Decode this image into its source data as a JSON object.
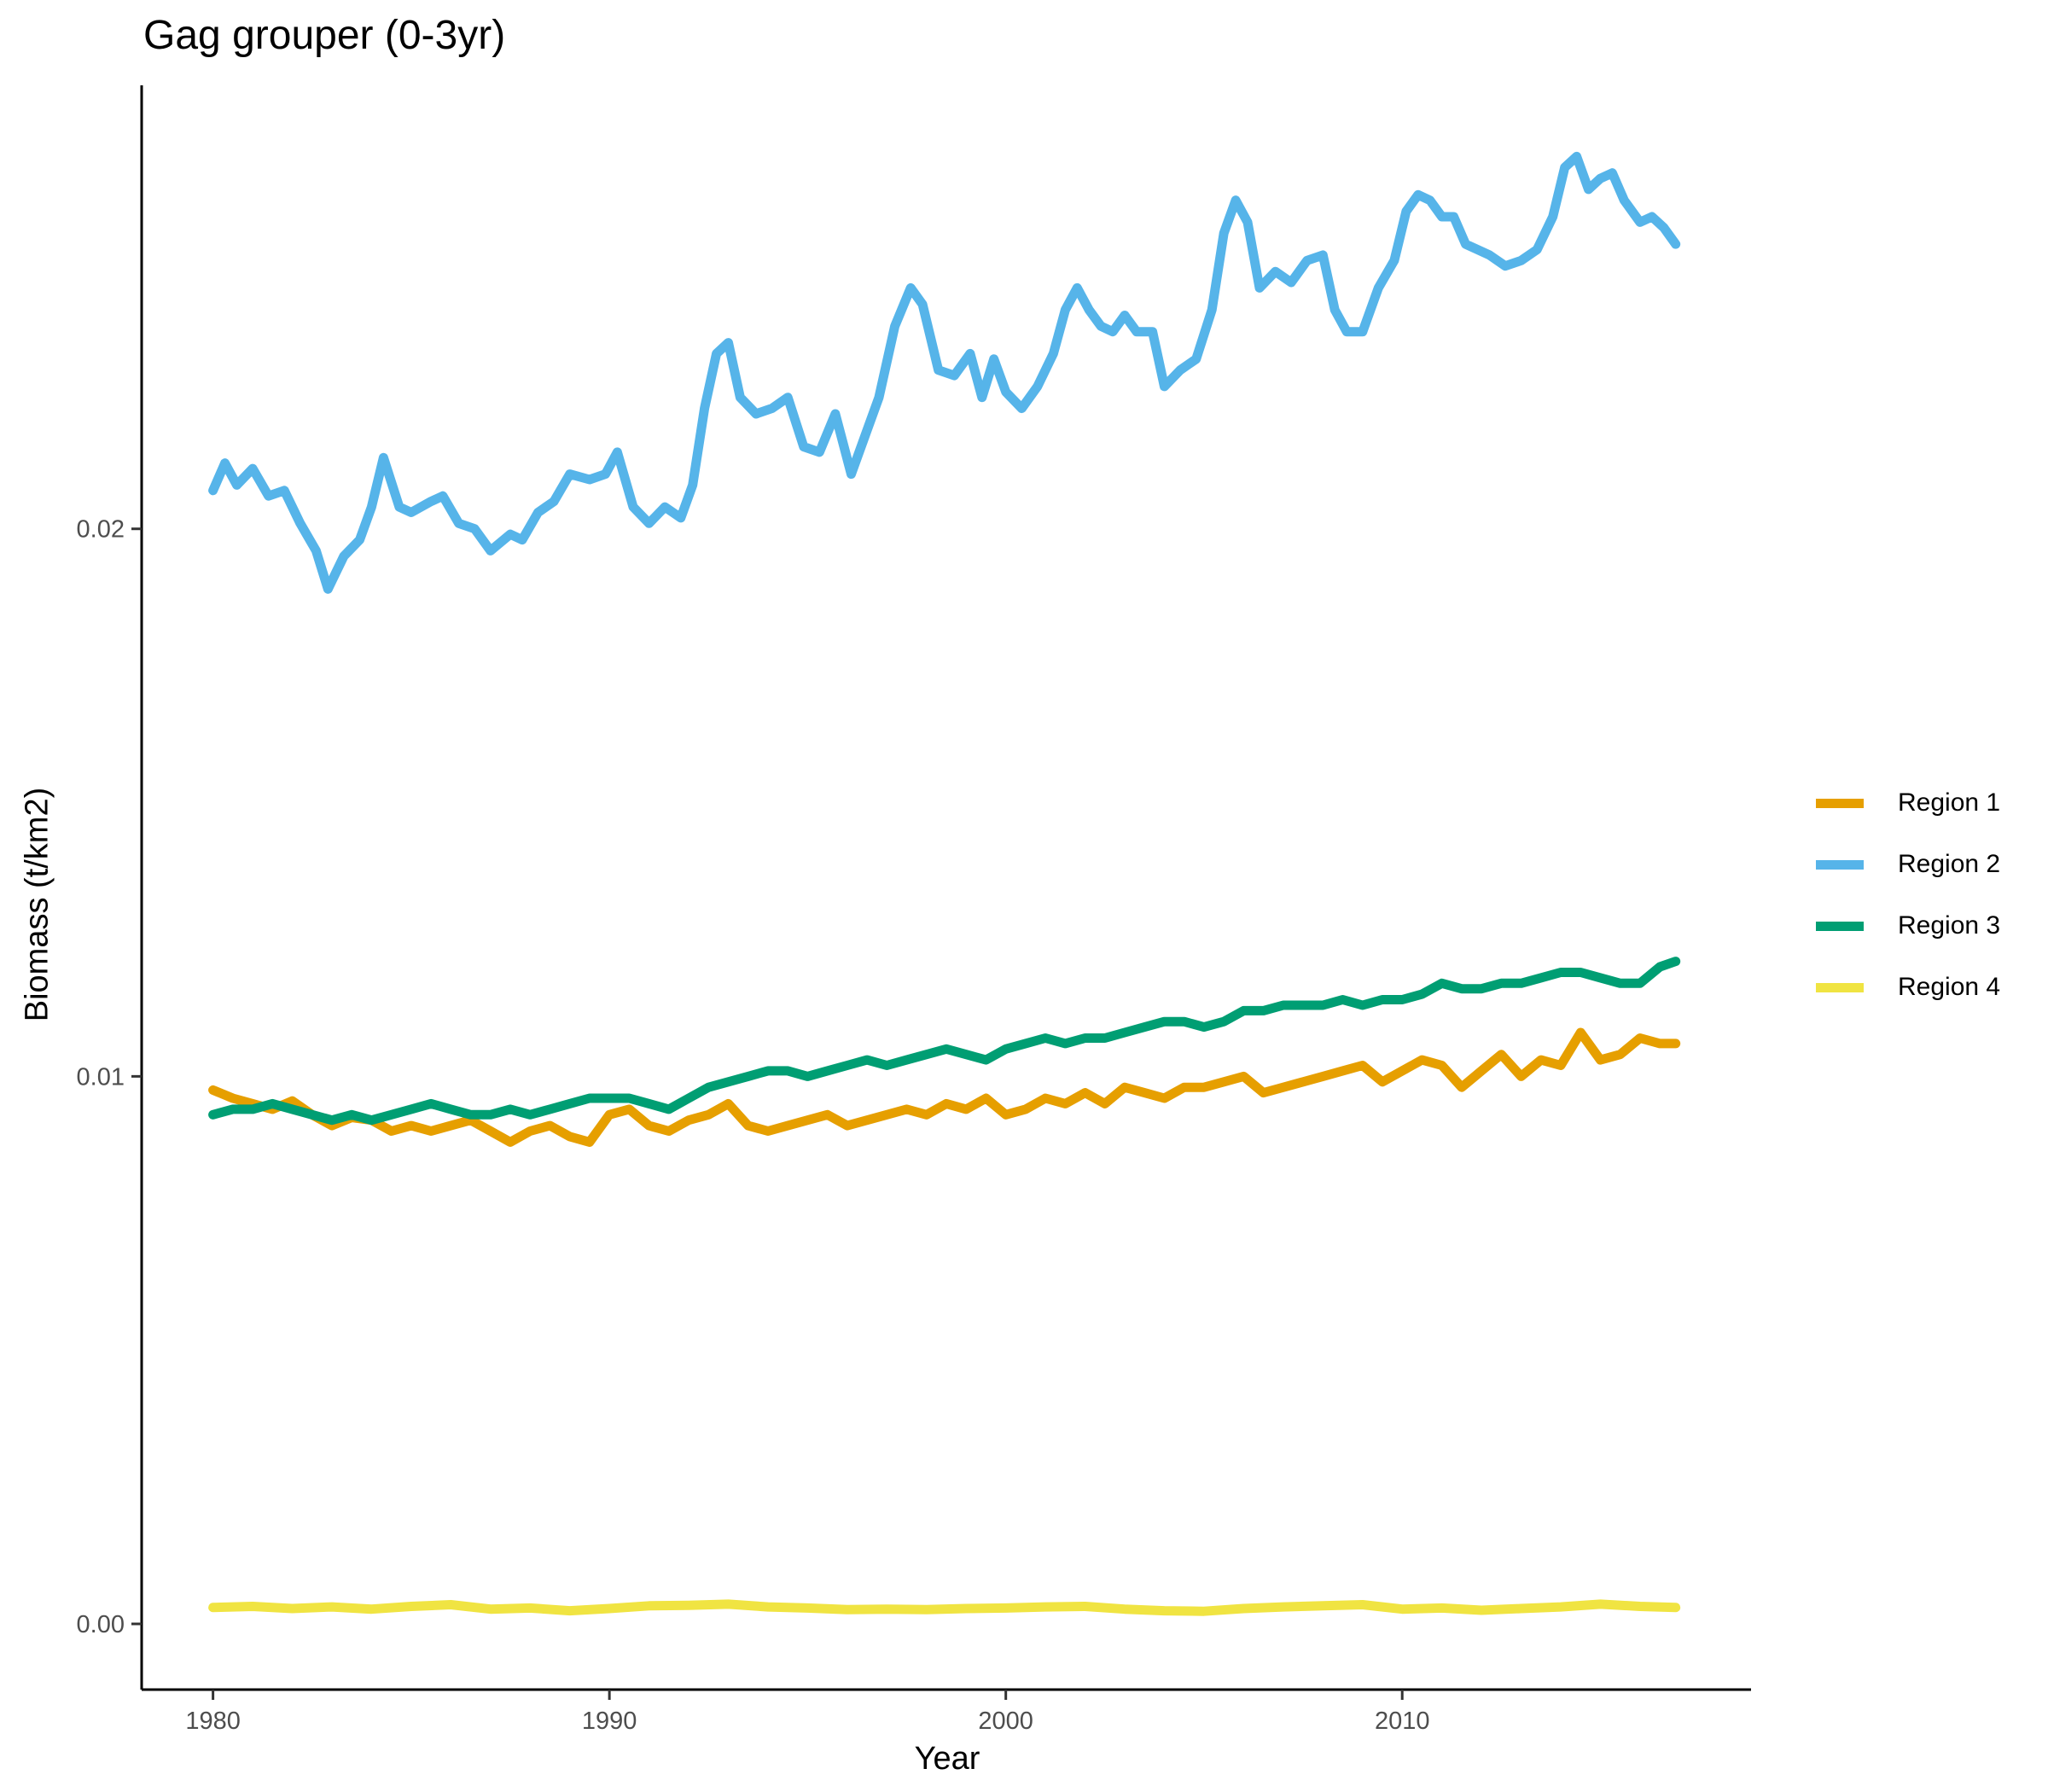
{
  "chart_data": {
    "type": "line",
    "title": "Gag grouper (0-3yr)",
    "xlabel": "Year",
    "ylabel": "Biomass (t/km2)",
    "xlim": [
      1978.2,
      2018.8
    ],
    "ylim": [
      -0.0012,
      0.0281
    ],
    "x_ticks": [
      1980,
      1990,
      2000,
      2010
    ],
    "x_tick_labels": [
      "1980",
      "1990",
      "2000",
      "2010"
    ],
    "y_ticks": [
      0,
      0.01,
      0.02
    ],
    "y_tick_labels": [
      "0.00",
      "0.01",
      "0.02"
    ],
    "legend_position": "right",
    "grid": false,
    "series": [
      {
        "name": "Region 1",
        "color": "#E69F00",
        "x": [
          1980.0,
          1980.5,
          1981.0,
          1981.5,
          1982.0,
          1982.5,
          1983.0,
          1983.5,
          1984.0,
          1984.5,
          1985.0,
          1985.5,
          1986.0,
          1986.5,
          1987.0,
          1987.5,
          1988.0,
          1988.5,
          1989.0,
          1989.5,
          1990.0,
          1990.5,
          1991.0,
          1991.5,
          1992.0,
          1992.5,
          1993.0,
          1993.5,
          1994.0,
          1994.5,
          1995.0,
          1995.5,
          1996.0,
          1996.5,
          1997.0,
          1997.5,
          1998.0,
          1998.5,
          1999.0,
          1999.5,
          2000.0,
          2000.5,
          2001.0,
          2001.5,
          2002.0,
          2002.5,
          2003.0,
          2003.5,
          2004.0,
          2004.5,
          2005.0,
          2005.5,
          2006.0,
          2006.5,
          2007.0,
          2007.5,
          2008.0,
          2008.5,
          2009.0,
          2009.5,
          2010.0,
          2010.5,
          2011.0,
          2011.5,
          2012.0,
          2012.5,
          2013.0,
          2013.5,
          2014.0,
          2014.5,
          2015.0,
          2015.5,
          2016.0,
          2016.5,
          2016.9
        ],
        "values": [
          0.00975,
          0.0096,
          0.0095,
          0.0094,
          0.00955,
          0.0093,
          0.0091,
          0.00925,
          0.0092,
          0.009,
          0.0091,
          0.009,
          0.0091,
          0.0092,
          0.009,
          0.0088,
          0.009,
          0.0091,
          0.0089,
          0.0088,
          0.0093,
          0.0094,
          0.0091,
          0.009,
          0.0092,
          0.0093,
          0.0095,
          0.0091,
          0.009,
          0.0091,
          0.0092,
          0.0093,
          0.0091,
          0.0092,
          0.0093,
          0.0094,
          0.0093,
          0.0095,
          0.0094,
          0.0096,
          0.0093,
          0.0094,
          0.0096,
          0.0095,
          0.0097,
          0.0095,
          0.0098,
          0.0097,
          0.0096,
          0.0098,
          0.0098,
          0.0099,
          0.01,
          0.0097,
          0.0098,
          0.0099,
          0.01,
          0.0101,
          0.0102,
          0.0099,
          0.0101,
          0.0103,
          0.0102,
          0.0098,
          0.0101,
          0.0104,
          0.01,
          0.0103,
          0.0102,
          0.0108,
          0.0103,
          0.0104,
          0.0107,
          0.0106,
          0.0106
        ]
      },
      {
        "name": "Region 2",
        "color": "#56B4E9",
        "x": [
          1980.0,
          1980.3,
          1980.6,
          1981.0,
          1981.4,
          1981.8,
          1982.2,
          1982.6,
          1982.9,
          1983.3,
          1983.7,
          1984.0,
          1984.3,
          1984.7,
          1985.0,
          1985.5,
          1985.8,
          1986.2,
          1986.6,
          1987.0,
          1987.5,
          1987.8,
          1988.2,
          1988.6,
          1989.0,
          1989.5,
          1989.9,
          1990.2,
          1990.6,
          1991.0,
          1991.4,
          1991.8,
          1992.1,
          1992.4,
          1992.7,
          1993.0,
          1993.3,
          1993.7,
          1994.1,
          1994.5,
          1994.9,
          1995.3,
          1995.7,
          1996.1,
          1996.4,
          1996.8,
          1997.2,
          1997.6,
          1997.9,
          1998.3,
          1998.7,
          1999.1,
          1999.4,
          1999.7,
          2000.0,
          2000.4,
          2000.8,
          2001.2,
          2001.5,
          2001.8,
          2002.1,
          2002.4,
          2002.7,
          2003.0,
          2003.3,
          2003.7,
          2004.0,
          2004.4,
          2004.8,
          2005.2,
          2005.5,
          2005.8,
          2006.1,
          2006.4,
          2006.8,
          2007.2,
          2007.6,
          2008.0,
          2008.3,
          2008.6,
          2009.0,
          2009.4,
          2009.8,
          2010.1,
          2010.4,
          2010.7,
          2011.0,
          2011.3,
          2011.6,
          2011.9,
          2012.2,
          2012.6,
          2013.0,
          2013.4,
          2013.8,
          2014.1,
          2014.4,
          2014.7,
          2015.0,
          2015.3,
          2015.6,
          2016.0,
          2016.3,
          2016.6,
          2016.9
        ],
        "values": [
          0.0207,
          0.0212,
          0.0208,
          0.0211,
          0.0206,
          0.0207,
          0.0201,
          0.0196,
          0.0189,
          0.0195,
          0.0198,
          0.0204,
          0.0213,
          0.0204,
          0.0203,
          0.0205,
          0.0206,
          0.0201,
          0.02,
          0.0196,
          0.0199,
          0.0198,
          0.0203,
          0.0205,
          0.021,
          0.0209,
          0.021,
          0.0214,
          0.0204,
          0.0201,
          0.0204,
          0.0202,
          0.0208,
          0.0222,
          0.0232,
          0.0234,
          0.0224,
          0.0221,
          0.0222,
          0.0224,
          0.0215,
          0.0214,
          0.0221,
          0.021,
          0.0216,
          0.0224,
          0.0237,
          0.0244,
          0.0241,
          0.0229,
          0.0228,
          0.0232,
          0.0224,
          0.0231,
          0.0225,
          0.0222,
          0.0226,
          0.0232,
          0.024,
          0.0244,
          0.024,
          0.0237,
          0.0236,
          0.0239,
          0.0236,
          0.0236,
          0.0226,
          0.0229,
          0.0231,
          0.024,
          0.0254,
          0.026,
          0.0256,
          0.0244,
          0.0247,
          0.0245,
          0.0249,
          0.025,
          0.024,
          0.0236,
          0.0236,
          0.0244,
          0.0249,
          0.0258,
          0.0261,
          0.026,
          0.0257,
          0.0257,
          0.0252,
          0.0251,
          0.025,
          0.0248,
          0.0249,
          0.0251,
          0.0257,
          0.0266,
          0.0268,
          0.0262,
          0.0264,
          0.0265,
          0.026,
          0.0256,
          0.0257,
          0.0255,
          0.0252
        ]
      },
      {
        "name": "Region 3",
        "color": "#009E73",
        "x": [
          1980.0,
          1980.5,
          1981.0,
          1981.5,
          1982.0,
          1982.5,
          1983.0,
          1983.5,
          1984.0,
          1984.5,
          1985.0,
          1985.5,
          1986.0,
          1986.5,
          1987.0,
          1987.5,
          1988.0,
          1988.5,
          1989.0,
          1989.5,
          1990.0,
          1990.5,
          1991.0,
          1991.5,
          1992.0,
          1992.5,
          1993.0,
          1993.5,
          1994.0,
          1994.5,
          1995.0,
          1995.5,
          1996.0,
          1996.5,
          1997.0,
          1997.5,
          1998.0,
          1998.5,
          1999.0,
          1999.5,
          2000.0,
          2000.5,
          2001.0,
          2001.5,
          2002.0,
          2002.5,
          2003.0,
          2003.5,
          2004.0,
          2004.5,
          2005.0,
          2005.5,
          2006.0,
          2006.5,
          2007.0,
          2007.5,
          2008.0,
          2008.5,
          2009.0,
          2009.5,
          2010.0,
          2010.5,
          2011.0,
          2011.5,
          2012.0,
          2012.5,
          2013.0,
          2013.5,
          2014.0,
          2014.5,
          2015.0,
          2015.5,
          2016.0,
          2016.5,
          2016.9
        ],
        "values": [
          0.0093,
          0.0094,
          0.0094,
          0.0095,
          0.0094,
          0.0093,
          0.0092,
          0.0093,
          0.0092,
          0.0093,
          0.0094,
          0.0095,
          0.0094,
          0.0093,
          0.0093,
          0.0094,
          0.0093,
          0.0094,
          0.0095,
          0.0096,
          0.0096,
          0.0096,
          0.0095,
          0.0094,
          0.0096,
          0.0098,
          0.0099,
          0.01,
          0.0101,
          0.0101,
          0.01,
          0.0101,
          0.0102,
          0.0103,
          0.0102,
          0.0103,
          0.0104,
          0.0105,
          0.0104,
          0.0103,
          0.0105,
          0.0106,
          0.0107,
          0.0106,
          0.0107,
          0.0107,
          0.0108,
          0.0109,
          0.011,
          0.011,
          0.0109,
          0.011,
          0.0112,
          0.0112,
          0.0113,
          0.0113,
          0.0113,
          0.0114,
          0.0113,
          0.0114,
          0.0114,
          0.0115,
          0.0117,
          0.0116,
          0.0116,
          0.0117,
          0.0117,
          0.0118,
          0.0119,
          0.0119,
          0.0118,
          0.0117,
          0.0117,
          0.012,
          0.0121
        ]
      },
      {
        "name": "Region 4",
        "color": "#F0E442",
        "x": [
          1980.0,
          1981.0,
          1982.0,
          1983.0,
          1984.0,
          1985.0,
          1986.0,
          1987.0,
          1988.0,
          1989.0,
          1990.0,
          1991.0,
          1992.0,
          1993.0,
          1994.0,
          1995.0,
          1996.0,
          1997.0,
          1998.0,
          1999.0,
          2000.0,
          2001.0,
          2002.0,
          2003.0,
          2004.0,
          2005.0,
          2006.0,
          2007.0,
          2008.0,
          2009.0,
          2010.0,
          2011.0,
          2012.0,
          2013.0,
          2014.0,
          2015.0,
          2016.0,
          2016.9
        ],
        "values": [
          0.0003,
          0.00032,
          0.00028,
          0.00031,
          0.00027,
          0.00032,
          0.00035,
          0.00027,
          0.00029,
          0.00024,
          0.00028,
          0.00033,
          0.00034,
          0.00036,
          0.00031,
          0.00029,
          0.00026,
          0.00027,
          0.00026,
          0.00028,
          0.00029,
          0.00031,
          0.00032,
          0.00027,
          0.00024,
          0.00023,
          0.00028,
          0.00031,
          0.00033,
          0.00035,
          0.00027,
          0.00029,
          0.00025,
          0.00028,
          0.00031,
          0.00036,
          0.00032,
          0.0003
        ]
      }
    ]
  }
}
